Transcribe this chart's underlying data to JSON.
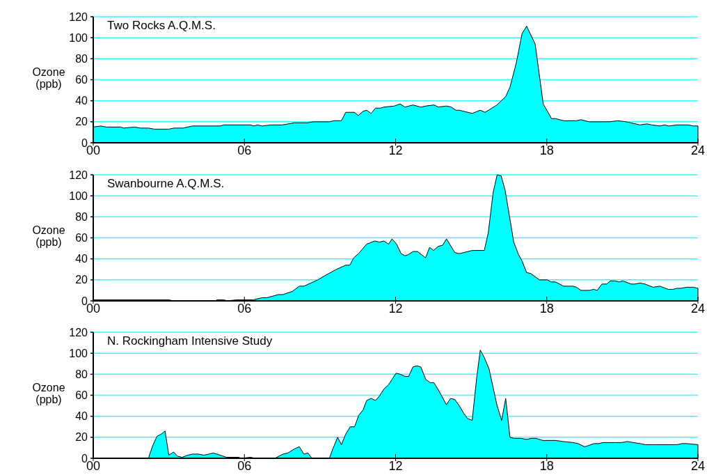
{
  "chart_data": [
    {
      "type": "area",
      "title": "Two Rocks A.Q.M.S.",
      "ylabel": "Ozone (ppb)",
      "xlim": [
        0,
        24
      ],
      "xticks": [
        {
          "value": 0,
          "label": "00"
        },
        {
          "value": 6,
          "label": "06"
        },
        {
          "value": 12,
          "label": "12"
        },
        {
          "value": 18,
          "label": "18"
        },
        {
          "value": 24,
          "label": "24"
        }
      ],
      "ylim": [
        0,
        120
      ],
      "yticks": [
        0,
        20,
        40,
        60,
        80,
        100,
        120
      ],
      "grid": "y",
      "series": [
        {
          "color": "#00ffff",
          "x": [
            0,
            0.3,
            0.53,
            1.09,
            1.2,
            1.64,
            1.87,
            2.2,
            2.42,
            3.0,
            3.2,
            3.57,
            3.94,
            5.05,
            5.18,
            6.24,
            6.38,
            6.52,
            6.7,
            7.07,
            7.5,
            7.99,
            8.5,
            8.73,
            9.37,
            9.56,
            9.85,
            10.02,
            10.36,
            10.52,
            10.71,
            10.85,
            11.03,
            11.2,
            11.4,
            11.54,
            11.95,
            12.18,
            12.37,
            12.69,
            13.0,
            13.2,
            13.52,
            13.7,
            14.02,
            14.21,
            14.39,
            14.53,
            15.04,
            15.36,
            15.55,
            15.82,
            16.02,
            16.24,
            16.37,
            16.54,
            16.79,
            17.02,
            17.2,
            17.54,
            17.86,
            18.19,
            18.35,
            18.67,
            19.18,
            19.36,
            19.68,
            20.5,
            20.82,
            21.15,
            21.7,
            21.98,
            22.16,
            22.49,
            22.67,
            22.85,
            23.17,
            23.63,
            23.82,
            24.0
          ],
          "values": [
            15,
            16,
            15,
            15,
            14,
            15,
            14,
            14,
            13,
            13,
            14,
            14,
            16,
            16,
            17,
            17,
            16,
            17,
            16,
            17,
            17,
            19,
            19,
            20,
            20,
            21,
            21,
            29,
            29,
            26,
            30,
            31,
            28,
            33,
            33,
            34,
            35,
            37,
            34,
            36,
            34,
            35,
            36,
            34,
            35,
            34,
            31,
            31,
            28,
            31,
            29,
            33,
            36,
            41,
            44,
            53,
            76,
            104,
            111,
            94,
            37,
            23,
            23,
            21,
            21,
            22,
            20,
            20,
            21,
            20,
            17,
            18,
            17,
            16,
            17,
            16,
            17,
            17,
            16,
            16
          ]
        }
      ]
    },
    {
      "type": "area",
      "title": "Swanbourne A.Q.M.S.",
      "ylabel": "Ozone (ppb)",
      "xlim": [
        0,
        24
      ],
      "xticks": [
        {
          "value": 0,
          "label": "00"
        },
        {
          "value": 6,
          "label": "06"
        },
        {
          "value": 12,
          "label": "12"
        },
        {
          "value": 18,
          "label": "18"
        },
        {
          "value": 24,
          "label": "24"
        }
      ],
      "ylim": [
        0,
        120
      ],
      "yticks": [
        0,
        20,
        40,
        60,
        80,
        100,
        120
      ],
      "grid": "y",
      "series": [
        {
          "color": "#00ffff",
          "x": [
            0,
            3.0,
            3.2,
            4.86,
            4.9,
            5.18,
            5.32,
            5.69,
            6.34,
            6.7,
            6.89,
            7.35,
            7.53,
            7.9,
            8.18,
            8.36,
            8.73,
            8.91,
            9.19,
            9.65,
            10.02,
            10.18,
            10.34,
            10.53,
            10.85,
            11.17,
            11.35,
            11.54,
            11.72,
            11.86,
            12.04,
            12.22,
            12.37,
            12.5,
            12.69,
            12.87,
            13.19,
            13.35,
            13.5,
            13.7,
            13.87,
            14.02,
            14.35,
            14.53,
            15.04,
            15.52,
            15.68,
            15.87,
            16.03,
            16.19,
            16.35,
            16.69,
            16.88,
            17.02,
            17.2,
            17.37,
            17.71,
            18.03,
            18.17,
            18.35,
            18.67,
            19.04,
            19.18,
            19.36,
            19.68,
            19.87,
            20.0,
            20.19,
            20.38,
            20.52,
            20.7,
            20.88,
            21.02,
            21.35,
            21.48,
            21.71,
            21.9,
            22.22,
            22.49,
            22.82,
            23.0,
            23.18,
            23.32,
            23.55,
            23.82,
            24.0
          ],
          "values": [
            1,
            1,
            0,
            0,
            1,
            1,
            0,
            1,
            1,
            3,
            3,
            6,
            6,
            9,
            14,
            14,
            18,
            20,
            24,
            30,
            34,
            34,
            41,
            45,
            54,
            57,
            56,
            57,
            54,
            59,
            54,
            45,
            43,
            44,
            47,
            47,
            41,
            51,
            48,
            52,
            53,
            59,
            46,
            45,
            48,
            48,
            65,
            103,
            120,
            119,
            105,
            56,
            44,
            38,
            27,
            26,
            20,
            20,
            18,
            18,
            14,
            14,
            13,
            10,
            10,
            11,
            10,
            16,
            16,
            19,
            19,
            18,
            19,
            16,
            16,
            17,
            16,
            13,
            14,
            11,
            11,
            12,
            12,
            13,
            13,
            12
          ]
        }
      ]
    },
    {
      "type": "area",
      "title": "N. Rockingham Intensive Study",
      "ylabel": "Ozone (ppb)",
      "xlim": [
        0,
        24
      ],
      "xticks": [
        {
          "value": 0,
          "label": "00"
        },
        {
          "value": 6,
          "label": "06"
        },
        {
          "value": 12,
          "label": "12"
        },
        {
          "value": 18,
          "label": "18"
        },
        {
          "value": 24,
          "label": "24"
        }
      ],
      "ylim": [
        0,
        120
      ],
      "yticks": [
        0,
        20,
        40,
        60,
        80,
        100,
        120
      ],
      "grid": "y",
      "series": [
        {
          "color": "#00ffff",
          "x": [
            0,
            2.19,
            2.36,
            2.53,
            2.7,
            2.85,
            3.0,
            3.19,
            3.34,
            3.53,
            3.76,
            3.94,
            4.17,
            4.4,
            4.77,
            4.91,
            5.28,
            5.78,
            5.87,
            6.24,
            6.43,
            7.21,
            7.53,
            7.72,
            7.99,
            8.18,
            8.36,
            8.52,
            8.68,
            9.37,
            9.51,
            9.7,
            9.85,
            10.02,
            10.2,
            10.37,
            10.54,
            10.71,
            10.85,
            11.03,
            11.2,
            11.35,
            11.54,
            11.72,
            12.02,
            12.18,
            12.37,
            12.52,
            12.69,
            12.85,
            13.0,
            13.2,
            13.38,
            13.52,
            13.7,
            14.02,
            14.18,
            14.35,
            14.53,
            14.7,
            14.85,
            15.04,
            15.22,
            15.36,
            15.52,
            15.71,
            16.02,
            16.21,
            16.37,
            16.54,
            16.69,
            16.97,
            17.2,
            17.4,
            17.57,
            17.84,
            18.12,
            18.35,
            18.63,
            19.04,
            19.24,
            19.5,
            19.64,
            19.87,
            20.05,
            20.24,
            20.7,
            20.97,
            21.2,
            21.43,
            21.71,
            21.9,
            22.22,
            22.45,
            23.18,
            23.36,
            23.55,
            24.0
          ],
          "values": [
            0,
            0,
            12,
            21,
            23,
            26,
            3,
            6,
            2,
            1,
            3,
            4,
            4,
            3,
            5,
            4,
            1,
            1,
            0,
            1,
            0,
            0,
            4,
            5,
            9,
            11,
            4,
            5,
            0,
            0,
            9,
            20,
            13,
            23,
            30,
            30,
            41,
            46,
            55,
            57,
            55,
            59,
            66,
            70,
            81,
            80,
            78,
            78,
            87,
            88,
            87,
            75,
            72,
            72,
            65,
            51,
            57,
            56,
            50,
            43,
            38,
            36,
            77,
            103,
            96,
            85,
            51,
            36,
            57,
            20,
            19,
            19,
            18,
            19,
            19,
            17,
            17,
            17,
            16,
            15,
            14,
            11,
            12,
            14,
            14,
            15,
            15,
            15,
            16,
            15,
            14,
            13,
            13,
            13,
            13,
            14,
            14,
            13
          ]
        }
      ]
    }
  ]
}
